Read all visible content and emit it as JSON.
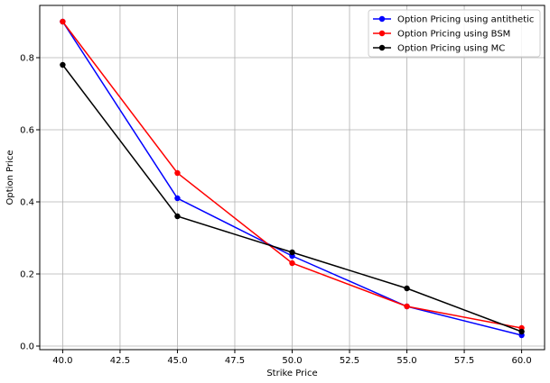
{
  "chart_data": {
    "type": "line",
    "title": "",
    "xlabel": "Strike Price",
    "ylabel": "Option Price",
    "xlim": [
      39.0,
      61.0
    ],
    "ylim": [
      -0.01,
      0.945
    ],
    "x_ticks": [
      40.0,
      42.5,
      45.0,
      47.5,
      50.0,
      52.5,
      55.0,
      57.5,
      60.0
    ],
    "x_tick_labels": [
      "40.0",
      "42.5",
      "45.0",
      "47.5",
      "50.0",
      "52.5",
      "55.0",
      "57.5",
      "60.0"
    ],
    "y_ticks": [
      0.0,
      0.2,
      0.4,
      0.6,
      0.8
    ],
    "y_tick_labels": [
      "0.0",
      "0.2",
      "0.4",
      "0.6",
      "0.8"
    ],
    "grid": true,
    "legend_position": "top-right",
    "x": [
      40,
      45,
      50,
      55,
      60
    ],
    "series": [
      {
        "name": "Option Pricing using antithetic",
        "color": "#0000ff",
        "values": [
          0.9,
          0.41,
          0.25,
          0.11,
          0.03
        ]
      },
      {
        "name": "Option Pricing using BSM",
        "color": "#ff0000",
        "values": [
          0.9,
          0.48,
          0.23,
          0.11,
          0.05
        ]
      },
      {
        "name": "Option Pricing using MC",
        "color": "#000000",
        "values": [
          0.78,
          0.36,
          0.26,
          0.16,
          0.04
        ]
      }
    ]
  }
}
